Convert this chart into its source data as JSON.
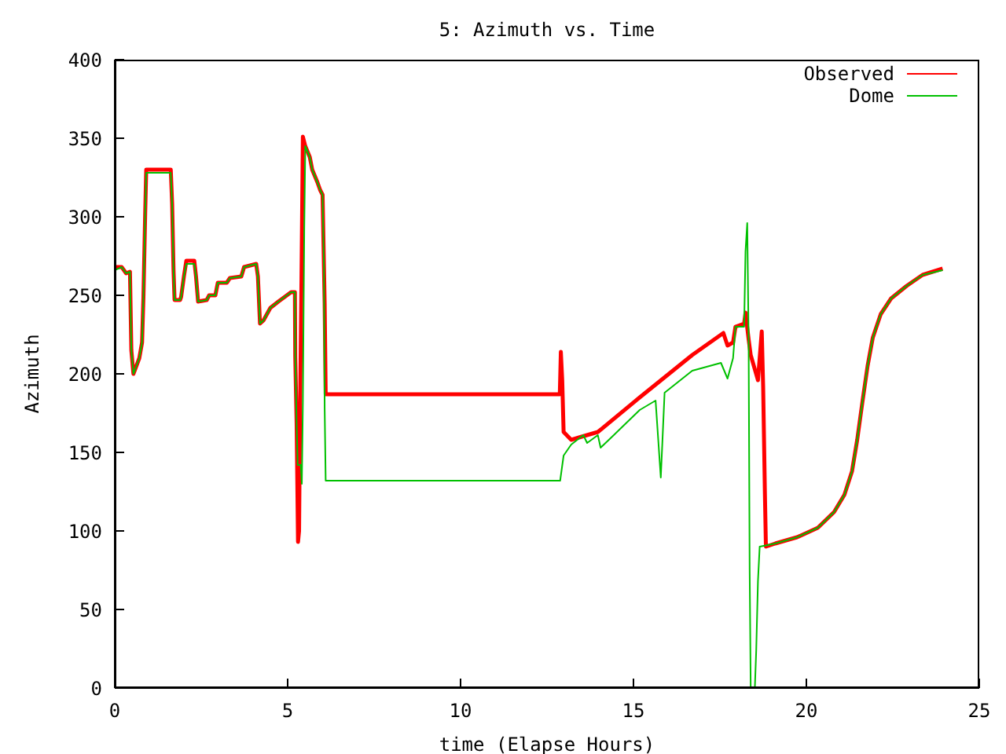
{
  "chart_data": {
    "type": "line",
    "title": "5: Azimuth vs. Time",
    "xlabel": "time (Elapse Hours)",
    "ylabel": "Azimuth",
    "xlim": [
      0,
      25
    ],
    "xticks": [
      0,
      5,
      10,
      15,
      20,
      25
    ],
    "ylim": [
      0,
      400
    ],
    "yticks": [
      0,
      50,
      100,
      150,
      200,
      250,
      300,
      350,
      400
    ],
    "grid": false,
    "legend": "top right",
    "series": [
      {
        "name": "Observed",
        "color": "#ff0000",
        "x": [
          0,
          0.2,
          0.33,
          0.44,
          0.48,
          0.54,
          0.71,
          0.79,
          0.83,
          0.88,
          0.91,
          1.62,
          1.66,
          1.7,
          1.73,
          1.89,
          1.92,
          2.0,
          2.07,
          2.3,
          2.35,
          2.41,
          2.66,
          2.73,
          2.91,
          2.98,
          3.24,
          3.33,
          3.66,
          3.74,
          4.09,
          4.14,
          4.2,
          4.3,
          4.5,
          4.73,
          5.1,
          5.21,
          5.22,
          5.26,
          5.3,
          5.33,
          5.36,
          5.4,
          5.44,
          5.51,
          5.64,
          5.71,
          5.86,
          5.94,
          6.01,
          6.05,
          6.07,
          6.1,
          12.87,
          12.9,
          12.94,
          12.98,
          13.2,
          13.5,
          13.97,
          15.18,
          16.7,
          17.6,
          17.72,
          17.88,
          17.95,
          18.2,
          18.24,
          18.33,
          18.39,
          18.6,
          18.71,
          18.75,
          18.8,
          18.83,
          19.1,
          19.73,
          20.33,
          20.8,
          21.1,
          21.32,
          21.47,
          21.62,
          21.77,
          21.92,
          22.15,
          22.45,
          22.9,
          23.36,
          23.94
        ],
        "values": [
          268,
          268,
          264,
          265,
          215,
          200,
          210,
          220,
          249,
          302,
          330,
          330,
          308,
          266,
          247,
          247,
          249,
          262,
          272,
          272,
          262,
          246,
          247,
          250,
          250,
          258,
          258,
          261,
          262,
          268,
          270,
          262,
          232,
          234,
          242,
          246,
          252,
          252,
          211,
          168,
          93,
          100,
          180,
          260,
          351,
          345,
          338,
          330,
          322,
          317,
          314,
          268,
          245,
          187,
          187,
          214,
          196,
          163,
          158,
          160,
          163,
          185,
          212,
          226,
          218,
          220,
          230,
          232,
          239,
          222,
          212,
          196,
          227,
          192,
          125,
          90,
          92,
          96,
          102,
          112,
          123,
          138,
          158,
          182,
          205,
          223,
          238,
          248,
          256,
          263,
          267
        ]
      },
      {
        "name": "Dome",
        "color": "#00c000",
        "x": [
          0,
          0.2,
          0.33,
          0.44,
          0.48,
          0.54,
          0.71,
          0.79,
          0.83,
          0.88,
          0.91,
          1.62,
          1.66,
          1.7,
          1.73,
          1.89,
          1.92,
          2.0,
          2.07,
          2.3,
          2.35,
          2.41,
          2.66,
          2.73,
          2.91,
          2.98,
          3.24,
          3.33,
          3.66,
          3.74,
          4.09,
          4.14,
          4.2,
          4.3,
          4.5,
          4.73,
          5.1,
          5.21,
          5.22,
          5.26,
          5.29,
          5.38,
          5.41,
          5.44,
          5.48,
          5.51,
          5.64,
          5.71,
          5.86,
          5.94,
          6.01,
          6.05,
          6.07,
          6.1,
          12.88,
          12.98,
          13.2,
          13.55,
          13.66,
          13.97,
          14.05,
          14.43,
          15.18,
          15.64,
          15.79,
          15.9,
          16.7,
          17.53,
          17.72,
          17.88,
          17.95,
          18.2,
          18.24,
          18.29,
          18.33,
          18.36,
          18.39,
          18.51,
          18.55,
          18.6,
          18.65,
          19.1,
          19.73,
          20.33,
          20.8,
          21.1,
          21.32,
          21.47,
          21.62,
          21.77,
          21.92,
          22.15,
          22.45,
          22.9,
          23.36,
          23.94
        ],
        "values": [
          266,
          268,
          264,
          265,
          215,
          200,
          210,
          220,
          249,
          302,
          328,
          328,
          308,
          266,
          247,
          247,
          249,
          262,
          270,
          270,
          262,
          246,
          247,
          250,
          250,
          258,
          258,
          261,
          262,
          268,
          270,
          262,
          232,
          234,
          242,
          246,
          252,
          252,
          211,
          168,
          142,
          142,
          130,
          182,
          292,
          345,
          338,
          330,
          322,
          317,
          314,
          268,
          178,
          132,
          132,
          148,
          155,
          161,
          156,
          161,
          153,
          161,
          177,
          183,
          134,
          188,
          202,
          207,
          197,
          210,
          230,
          230,
          278,
          296,
          222,
          75,
          0,
          0,
          24,
          68,
          90,
          92,
          96,
          102,
          112,
          123,
          138,
          158,
          182,
          205,
          223,
          238,
          248,
          256,
          263,
          266
        ]
      }
    ]
  }
}
